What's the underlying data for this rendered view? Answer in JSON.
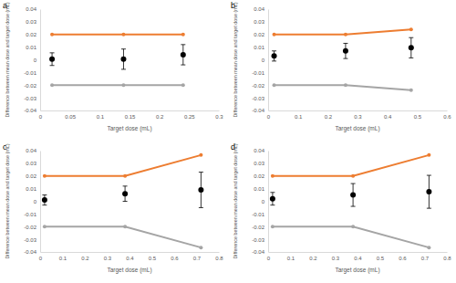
{
  "chart_data": [
    {
      "type": "line",
      "title": "a",
      "x_label": "Target dose (mL)",
      "y_label": "Difference between mean dose and target dose (mL)",
      "x": [
        0.02,
        0.14,
        0.24
      ],
      "xlim": [
        0,
        0.3
      ],
      "xticks": [
        0,
        0.05,
        0.1,
        0.15,
        0.2,
        0.25,
        0.3
      ],
      "ylim": [
        -0.04,
        0.04
      ],
      "yticks": [
        -0.04,
        -0.03,
        -0.02,
        -0.01,
        0,
        0.01,
        0.02,
        0.03,
        0.04
      ],
      "series": [
        {
          "type": "line",
          "color": "#ed7d31",
          "marker": "circle",
          "line_style": "solid",
          "values": [
            0.02,
            0.02,
            0.02
          ]
        },
        {
          "type": "line",
          "color": "#a5a5a5",
          "marker": "circle",
          "line_style": "solid",
          "values": [
            -0.02,
            -0.02,
            -0.02
          ]
        },
        {
          "type": "scatter",
          "color": "#000000",
          "marker": "circle",
          "values": [
            0.0005,
            0.0005,
            0.004
          ],
          "errors": [
            0.005,
            0.008,
            0.008
          ]
        }
      ]
    },
    {
      "type": "line",
      "title": "b",
      "x_label": "Target dose (mL)",
      "y_label": "Difference between mean dose and target dose (mL)",
      "x": [
        0.02,
        0.26,
        0.48
      ],
      "xlim": [
        0,
        0.6
      ],
      "xticks": [
        0,
        0.1,
        0.2,
        0.3,
        0.4,
        0.5,
        0.6
      ],
      "ylim": [
        -0.04,
        0.04
      ],
      "yticks": [
        -0.04,
        -0.03,
        -0.02,
        -0.01,
        0,
        0.01,
        0.02,
        0.03,
        0.04
      ],
      "series": [
        {
          "type": "line",
          "color": "#ed7d31",
          "marker": "circle",
          "line_style": "solid",
          "values": [
            0.02,
            0.02,
            0.024
          ]
        },
        {
          "type": "line",
          "color": "#a5a5a5",
          "marker": "circle",
          "line_style": "solid",
          "values": [
            -0.02,
            -0.02,
            -0.024
          ]
        },
        {
          "type": "scatter",
          "color": "#000000",
          "marker": "circle",
          "values": [
            0.003,
            0.007,
            0.0095
          ],
          "errors": [
            0.004,
            0.006,
            0.008
          ]
        }
      ]
    },
    {
      "type": "line",
      "title": "c",
      "x_label": "Target dose (mL)",
      "y_label": "Difference between mean dose and target dose (mL)",
      "x": [
        0.02,
        0.38,
        0.72
      ],
      "xlim": [
        0,
        0.8
      ],
      "xticks": [
        0,
        0.1,
        0.2,
        0.3,
        0.4,
        0.5,
        0.6,
        0.7,
        0.8
      ],
      "ylim": [
        -0.04,
        0.04
      ],
      "yticks": [
        -0.04,
        -0.03,
        -0.02,
        -0.01,
        0,
        0.01,
        0.02,
        0.03,
        0.04
      ],
      "series": [
        {
          "type": "line",
          "color": "#ed7d31",
          "marker": "circle",
          "line_style": "solid",
          "values": [
            0.02,
            0.02,
            0.0365
          ]
        },
        {
          "type": "line",
          "color": "#a5a5a5",
          "marker": "circle",
          "line_style": "solid",
          "values": [
            -0.02,
            -0.02,
            -0.0365
          ]
        },
        {
          "type": "scatter",
          "color": "#000000",
          "marker": "circle",
          "values": [
            0.001,
            0.006,
            0.009
          ],
          "errors": [
            0.004,
            0.006,
            0.014
          ]
        }
      ]
    },
    {
      "type": "line",
      "title": "d",
      "x_label": "Target dose (mL)",
      "y_label": "Difference between mean dose and target dose (mL)",
      "x": [
        0.02,
        0.38,
        0.72
      ],
      "xlim": [
        0,
        0.8
      ],
      "xticks": [
        0,
        0.1,
        0.2,
        0.3,
        0.4,
        0.5,
        0.6,
        0.7,
        0.8
      ],
      "ylim": [
        -0.04,
        0.04
      ],
      "yticks": [
        -0.04,
        -0.03,
        -0.02,
        -0.01,
        0,
        0.01,
        0.02,
        0.03,
        0.04
      ],
      "series": [
        {
          "type": "line",
          "color": "#ed7d31",
          "marker": "circle",
          "line_style": "solid",
          "values": [
            0.02,
            0.02,
            0.0365
          ]
        },
        {
          "type": "line",
          "color": "#a5a5a5",
          "marker": "circle",
          "line_style": "solid",
          "values": [
            -0.02,
            -0.02,
            -0.0365
          ]
        },
        {
          "type": "scatter",
          "color": "#000000",
          "marker": "circle",
          "values": [
            0.002,
            0.005,
            0.0075
          ],
          "errors": [
            0.005,
            0.009,
            0.013
          ]
        }
      ]
    }
  ]
}
